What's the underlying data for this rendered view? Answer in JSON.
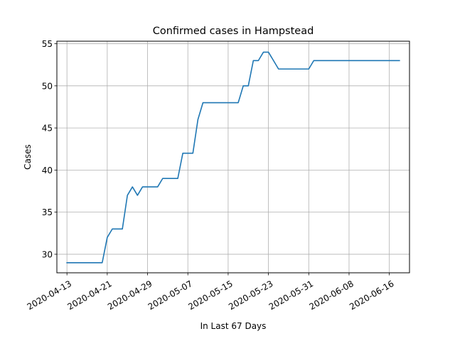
{
  "chart_data": {
    "type": "line",
    "title": "Confirmed cases in Hampstead",
    "xlabel": "In Last 67 Days",
    "ylabel": "Cases",
    "grid": true,
    "legend": "none",
    "x_start": "2020-04-13",
    "xlim": [
      "2020-04-11",
      "2020-06-20"
    ],
    "ylim": [
      27.8,
      55.3
    ],
    "x_ticks": [
      "2020-04-13",
      "2020-04-21",
      "2020-04-29",
      "2020-05-07",
      "2020-05-15",
      "2020-05-23",
      "2020-05-31",
      "2020-06-08",
      "2020-06-16"
    ],
    "y_ticks": [
      30,
      35,
      40,
      45,
      50,
      55
    ],
    "series": [
      {
        "name": "",
        "color": "#1f77b4",
        "values": [
          29,
          29,
          29,
          29,
          29,
          29,
          29,
          29,
          32,
          33,
          33,
          33,
          37,
          38,
          37,
          38,
          38,
          38,
          38,
          39,
          39,
          39,
          39,
          42,
          42,
          42,
          46,
          48,
          48,
          48,
          48,
          48,
          48,
          48,
          48,
          50,
          50,
          53,
          53,
          54,
          54,
          53,
          52,
          52,
          52,
          52,
          52,
          52,
          52,
          53,
          53,
          53,
          53,
          53,
          53,
          53,
          53,
          53,
          53,
          53,
          53,
          53,
          53,
          53,
          53,
          53,
          53
        ]
      }
    ]
  }
}
